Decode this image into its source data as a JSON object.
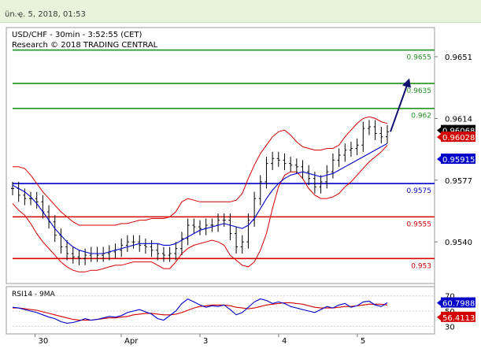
{
  "header": {
    "timestamp": "ün.ҿ. 5, 2018, 01:53"
  },
  "chart_title": "USD/CHF - 30min - 3:52:55 (CET)",
  "chart_credit": "Research © 2018 TRADING CENTRAL",
  "colors": {
    "green": "#1f8f1f",
    "blue": "#0000c8",
    "red": "#d40000",
    "price": "#000000",
    "ma": "#0000c8",
    "band": "#d40000",
    "rsi": "#0000c8",
    "rsi_ma": "#d40000",
    "arrow": "#10106e"
  },
  "chart_data": [
    {
      "type": "line",
      "title": "USD/CHF - 30min - 3:52:55 (CET)",
      "ylim": [
        0.9516,
        0.9668
      ],
      "price_axis_ticks": [
        {
          "value": 0.9651,
          "label": "0.9651"
        },
        {
          "value": 0.9614,
          "label": "0.9614"
        },
        {
          "value": 0.9577,
          "label": "0.9577"
        },
        {
          "value": 0.954,
          "label": "0.9540"
        }
      ],
      "levels": [
        {
          "value": 0.9655,
          "label": "0.9655",
          "color": "#1f8f1f"
        },
        {
          "value": 0.9635,
          "label": "0.9635",
          "color": "#1f8f1f"
        },
        {
          "value": 0.962,
          "label": "0.962",
          "color": "#1f8f1f"
        },
        {
          "value": 0.9575,
          "label": "0.9575",
          "color": "#0000c8"
        },
        {
          "value": 0.9555,
          "label": "0.9555",
          "color": "#d40000"
        },
        {
          "value": 0.953,
          "label": "0.953",
          "color": "#d40000"
        }
      ],
      "price_tags": [
        {
          "value": 0.96068,
          "label": "0.96068",
          "style": "black"
        },
        {
          "value": 0.96028,
          "label": "0.96028",
          "style": "red"
        },
        {
          "value": 0.95915,
          "label": "0.95915",
          "style": "blue"
        }
      ],
      "x_labels": [
        {
          "x": 0.06,
          "label": "30"
        },
        {
          "x": 0.29,
          "label": "Apr"
        },
        {
          "x": 0.5,
          "label": "3"
        },
        {
          "x": 0.71,
          "label": "4"
        },
        {
          "x": 0.92,
          "label": "5"
        }
      ],
      "close": [
        0.9572,
        0.9568,
        0.9566,
        0.9566,
        0.9564,
        0.9558,
        0.9552,
        0.9544,
        0.9537,
        0.9533,
        0.9531,
        0.953,
        0.9532,
        0.9533,
        0.9532,
        0.9533,
        0.9534,
        0.9535,
        0.9538,
        0.954,
        0.954,
        0.9538,
        0.9537,
        0.9535,
        0.9533,
        0.9532,
        0.9533,
        0.9536,
        0.9542,
        0.955,
        0.9549,
        0.9548,
        0.955,
        0.955,
        0.9553,
        0.9553,
        0.9545,
        0.9537,
        0.954,
        0.9553,
        0.9566,
        0.9576,
        0.9587,
        0.959,
        0.9589,
        0.9587,
        0.9586,
        0.9585,
        0.9582,
        0.9578,
        0.9573,
        0.9576,
        0.9582,
        0.9589,
        0.9592,
        0.9595,
        0.9596,
        0.9598,
        0.9608,
        0.9609,
        0.9605,
        0.9603,
        0.9606
      ],
      "upper_band": [
        0.9585,
        0.9585,
        0.9584,
        0.958,
        0.9575,
        0.957,
        0.9566,
        0.9562,
        0.9558,
        0.9555,
        0.9552,
        0.955,
        0.955,
        0.955,
        0.955,
        0.955,
        0.955,
        0.955,
        0.9551,
        0.9551,
        0.9552,
        0.9553,
        0.9553,
        0.9554,
        0.9554,
        0.9554,
        0.9555,
        0.9558,
        0.9564,
        0.9566,
        0.9565,
        0.9564,
        0.9564,
        0.9564,
        0.9564,
        0.9564,
        0.9564,
        0.9565,
        0.9569,
        0.9578,
        0.9586,
        0.9593,
        0.9598,
        0.9603,
        0.9606,
        0.9607,
        0.9604,
        0.96,
        0.9597,
        0.9596,
        0.9595,
        0.9595,
        0.9596,
        0.9596,
        0.9598,
        0.9603,
        0.9607,
        0.9611,
        0.9614,
        0.9615,
        0.9614,
        0.9612,
        0.9611
      ],
      "lower_band": [
        0.9563,
        0.9559,
        0.9556,
        0.9551,
        0.9545,
        0.954,
        0.9536,
        0.9532,
        0.9528,
        0.9525,
        0.9523,
        0.9522,
        0.9522,
        0.9523,
        0.9523,
        0.9524,
        0.9525,
        0.9526,
        0.9526,
        0.9527,
        0.9528,
        0.9528,
        0.9528,
        0.9528,
        0.9526,
        0.9524,
        0.9524,
        0.9528,
        0.9533,
        0.9536,
        0.9538,
        0.9539,
        0.954,
        0.9541,
        0.954,
        0.9538,
        0.9532,
        0.9529,
        0.9526,
        0.9525,
        0.9528,
        0.9535,
        0.9545,
        0.956,
        0.9573,
        0.958,
        0.9582,
        0.9582,
        0.9578,
        0.9572,
        0.9568,
        0.9566,
        0.9566,
        0.9567,
        0.9569,
        0.9573,
        0.9576,
        0.958,
        0.9584,
        0.9588,
        0.9591,
        0.9594,
        0.9598
      ],
      "moving_average": [
        0.9574,
        0.9572,
        0.957,
        0.9567,
        0.9563,
        0.9558,
        0.9553,
        0.9548,
        0.9544,
        0.954,
        0.9537,
        0.9535,
        0.9534,
        0.9533,
        0.9533,
        0.9533,
        0.9534,
        0.9535,
        0.9536,
        0.9537,
        0.9538,
        0.9539,
        0.9539,
        0.9539,
        0.9539,
        0.9538,
        0.9538,
        0.9539,
        0.9541,
        0.9543,
        0.9545,
        0.9547,
        0.9548,
        0.9549,
        0.955,
        0.9551,
        0.955,
        0.9549,
        0.9548,
        0.955,
        0.9554,
        0.956,
        0.9566,
        0.9571,
        0.9575,
        0.9578,
        0.958,
        0.9581,
        0.9582,
        0.9581,
        0.958,
        0.9579,
        0.958,
        0.9581,
        0.9583,
        0.9585,
        0.9587,
        0.9589,
        0.9591,
        0.9593,
        0.9595,
        0.9597,
        0.9599
      ],
      "projection": {
        "from": 0.9606,
        "to": 0.9638
      }
    },
    {
      "type": "line",
      "title": "RSI14 - 9MA",
      "ylim": [
        22,
        78
      ],
      "axis_ticks": [
        {
          "value": 70,
          "label": "70"
        },
        {
          "value": 50,
          "label": "50"
        },
        {
          "value": 30,
          "label": "30"
        }
      ],
      "value_tags": [
        {
          "value": 60.7988,
          "label": "60.7988",
          "style": "blue"
        },
        {
          "value": 56.4113,
          "label": "56.4113",
          "style": "red"
        }
      ],
      "rsi": [
        55,
        54,
        52,
        50,
        48,
        45,
        42,
        40,
        36,
        34,
        35,
        37,
        40,
        38,
        39,
        41,
        43,
        42,
        44,
        48,
        50,
        52,
        49,
        46,
        40,
        38,
        44,
        50,
        60,
        66,
        62,
        58,
        55,
        57,
        56,
        58,
        52,
        45,
        48,
        55,
        62,
        66,
        64,
        60,
        62,
        60,
        56,
        54,
        52,
        50,
        48,
        52,
        56,
        54,
        58,
        60,
        55,
        57,
        62,
        63,
        58,
        56,
        61
      ],
      "rsi_ma": [
        54,
        54,
        53,
        52,
        51,
        49,
        47,
        45,
        43,
        41,
        39,
        38,
        38,
        38,
        39,
        40,
        41,
        41,
        42,
        43,
        45,
        46,
        47,
        47,
        46,
        45,
        45,
        46,
        48,
        51,
        54,
        56,
        57,
        58,
        58,
        58,
        57,
        55,
        54,
        53,
        54,
        56,
        58,
        59,
        60,
        61,
        61,
        60,
        59,
        57,
        55,
        54,
        54,
        54,
        55,
        56,
        56,
        57,
        58,
        59,
        59,
        59,
        58
      ]
    }
  ]
}
